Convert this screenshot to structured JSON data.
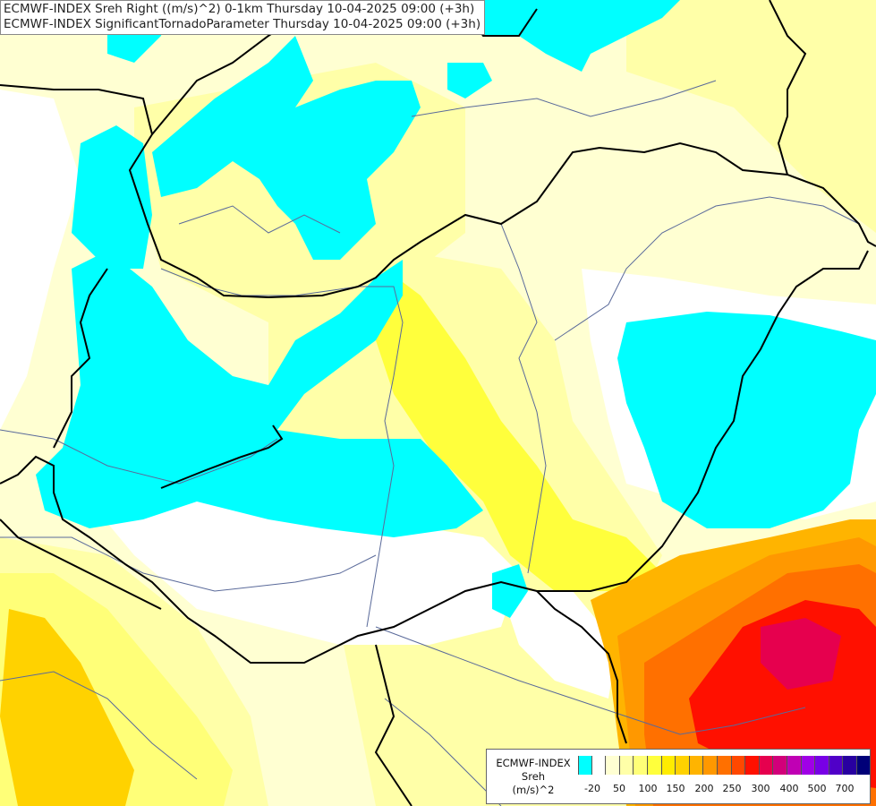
{
  "header": {
    "line1": "ECMWF-INDEX Sreh Right ((m/s)^2) 0-1km Thursday 10-04-2025 09:00 (+3h)",
    "line2": "ECMWF-INDEX SignificantTornadoParameter Thursday 10-04-2025 09:00 (+3h)"
  },
  "legend": {
    "title_line1": "ECMWF-INDEX",
    "title_line2": "Sreh",
    "title_line3": "(m/s)^2",
    "colors": [
      "#00ffff",
      "#ffffff",
      "#ffffd2",
      "#ffffa8",
      "#ffff78",
      "#ffff3c",
      "#ffec00",
      "#ffd200",
      "#ffb400",
      "#ff9800",
      "#ff7000",
      "#ff4800",
      "#ff1000",
      "#e6004e",
      "#d2007a",
      "#c000b4",
      "#a000e6",
      "#7800e6",
      "#5000c8",
      "#2800a0",
      "#000078"
    ],
    "labels": [
      "-20",
      "50",
      "100",
      "150",
      "200",
      "250",
      "300",
      "400",
      "500",
      "700"
    ]
  },
  "palette": {
    "cyan": "#00ffff",
    "white": "#ffffff",
    "pale_yellow": "#ffffd2",
    "light_yellow": "#ffffa8",
    "yellow": "#ffff78",
    "bright_yellow": "#ffff3c",
    "gold": "#ffd200",
    "orange": "#ff9800",
    "dark_orange": "#ff7000",
    "red": "#ff1000",
    "crimson": "#e6004e",
    "border": "#000000",
    "river": "#5a6a9a"
  }
}
